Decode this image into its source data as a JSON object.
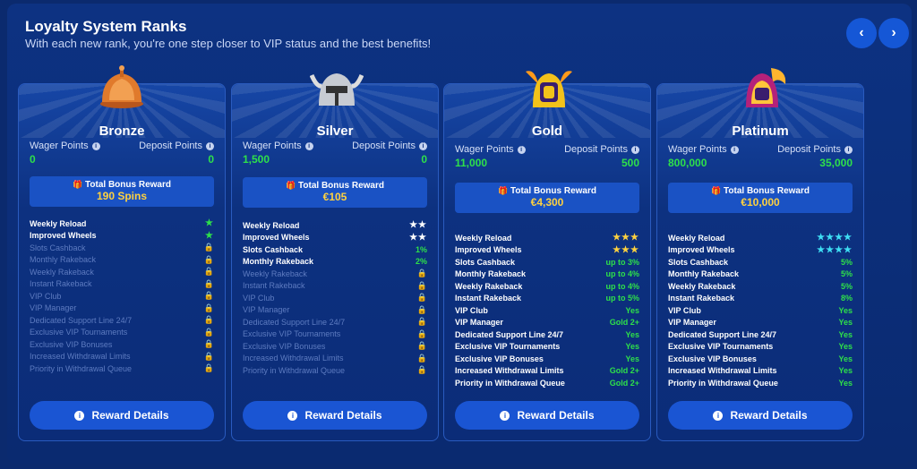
{
  "header": {
    "title": "Loyalty System Ranks",
    "subtitle": "With each new rank, you're one step closer to VIP status and the best benefits!",
    "prev_icon": "chevron-left-icon",
    "next_icon": "chevron-right-icon"
  },
  "labels": {
    "wager": "Wager Points",
    "deposit": "Deposit Points",
    "bonus": "Total Bonus Reward",
    "reward_details": "Reward Details"
  },
  "colors": {
    "accent": "#1a55d3",
    "green": "#2ee04a",
    "gold": "#ffd23f",
    "locked": "#5d7bc0"
  },
  "ranks": [
    {
      "name": "Bronze",
      "wager": "0",
      "deposit": "0",
      "bonus": "190 Spins",
      "features": [
        {
          "label": "Weekly Reload",
          "value": "★",
          "kind": "star-green",
          "locked": false
        },
        {
          "label": "Improved Wheels",
          "value": "★",
          "kind": "star-green",
          "locked": false
        },
        {
          "label": "Slots Cashback",
          "value": "",
          "kind": "lock",
          "locked": true
        },
        {
          "label": "Monthly Rakeback",
          "value": "",
          "kind": "lock",
          "locked": true
        },
        {
          "label": "Weekly Rakeback",
          "value": "",
          "kind": "lock",
          "locked": true
        },
        {
          "label": "Instant Rakeback",
          "value": "",
          "kind": "lock",
          "locked": true
        },
        {
          "label": "VIP Club",
          "value": "",
          "kind": "lock",
          "locked": true
        },
        {
          "label": "VIP Manager",
          "value": "",
          "kind": "lock",
          "locked": true
        },
        {
          "label": "Dedicated Support Line 24/7",
          "value": "",
          "kind": "lock",
          "locked": true
        },
        {
          "label": "Exclusive VIP Tournaments",
          "value": "",
          "kind": "lock",
          "locked": true
        },
        {
          "label": "Exclusive VIP Bonuses",
          "value": "",
          "kind": "lock",
          "locked": true
        },
        {
          "label": "Increased Withdrawal Limits",
          "value": "",
          "kind": "lock",
          "locked": true
        },
        {
          "label": "Priority in Withdrawal Queue",
          "value": "",
          "kind": "lock",
          "locked": true
        }
      ]
    },
    {
      "name": "Silver",
      "wager": "1,500",
      "deposit": "0",
      "bonus": "€105",
      "features": [
        {
          "label": "Weekly Reload",
          "value": "★★",
          "kind": "star-white",
          "locked": false
        },
        {
          "label": "Improved Wheels",
          "value": "★★",
          "kind": "star-white",
          "locked": false
        },
        {
          "label": "Slots Cashback",
          "value": "1%",
          "kind": "val-green",
          "locked": false
        },
        {
          "label": "Monthly Rakeback",
          "value": "2%",
          "kind": "val-green",
          "locked": false
        },
        {
          "label": "Weekly Rakeback",
          "value": "",
          "kind": "lock",
          "locked": true
        },
        {
          "label": "Instant Rakeback",
          "value": "",
          "kind": "lock",
          "locked": true
        },
        {
          "label": "VIP Club",
          "value": "",
          "kind": "lock",
          "locked": true
        },
        {
          "label": "VIP Manager",
          "value": "",
          "kind": "lock",
          "locked": true
        },
        {
          "label": "Dedicated Support Line 24/7",
          "value": "",
          "kind": "lock",
          "locked": true
        },
        {
          "label": "Exclusive VIP Tournaments",
          "value": "",
          "kind": "lock",
          "locked": true
        },
        {
          "label": "Exclusive VIP Bonuses",
          "value": "",
          "kind": "lock",
          "locked": true
        },
        {
          "label": "Increased Withdrawal Limits",
          "value": "",
          "kind": "lock",
          "locked": true
        },
        {
          "label": "Priority in Withdrawal Queue",
          "value": "",
          "kind": "lock",
          "locked": true
        }
      ]
    },
    {
      "name": "Gold",
      "wager": "11,000",
      "deposit": "500",
      "bonus": "€4,300",
      "features": [
        {
          "label": "Weekly Reload",
          "value": "★★★",
          "kind": "star-gold",
          "locked": false
        },
        {
          "label": "Improved Wheels",
          "value": "★★★",
          "kind": "star-gold",
          "locked": false
        },
        {
          "label": "Slots Cashback",
          "value": "up to 3%",
          "kind": "val-green",
          "locked": false
        },
        {
          "label": "Monthly Rakeback",
          "value": "up to 4%",
          "kind": "val-green",
          "locked": false
        },
        {
          "label": "Weekly Rakeback",
          "value": "up to 4%",
          "kind": "val-green",
          "locked": false
        },
        {
          "label": "Instant Rakeback",
          "value": "up to 5%",
          "kind": "val-green",
          "locked": false
        },
        {
          "label": "VIP Club",
          "value": "Yes",
          "kind": "val-green",
          "locked": false
        },
        {
          "label": "VIP Manager",
          "value": "Gold 2+",
          "kind": "val-green",
          "locked": false
        },
        {
          "label": "Dedicated Support Line 24/7",
          "value": "Yes",
          "kind": "val-green",
          "locked": false
        },
        {
          "label": "Exclusive VIP Tournaments",
          "value": "Yes",
          "kind": "val-green",
          "locked": false
        },
        {
          "label": "Exclusive VIP Bonuses",
          "value": "Yes",
          "kind": "val-green",
          "locked": false
        },
        {
          "label": "Increased Withdrawal Limits",
          "value": "Gold 2+",
          "kind": "val-green",
          "locked": false
        },
        {
          "label": "Priority in Withdrawal Queue",
          "value": "Gold 2+",
          "kind": "val-green",
          "locked": false
        }
      ]
    },
    {
      "name": "Platinum",
      "wager": "800,000",
      "deposit": "35,000",
      "bonus": "€10,000",
      "features": [
        {
          "label": "Weekly Reload",
          "value": "★★★★",
          "kind": "star-cyan",
          "locked": false
        },
        {
          "label": "Improved Wheels",
          "value": "★★★★",
          "kind": "star-cyan",
          "locked": false
        },
        {
          "label": "Slots Cashback",
          "value": "5%",
          "kind": "val-green",
          "locked": false
        },
        {
          "label": "Monthly Rakeback",
          "value": "5%",
          "kind": "val-green",
          "locked": false
        },
        {
          "label": "Weekly Rakeback",
          "value": "5%",
          "kind": "val-green",
          "locked": false
        },
        {
          "label": "Instant Rakeback",
          "value": "8%",
          "kind": "val-green",
          "locked": false
        },
        {
          "label": "VIP Club",
          "value": "Yes",
          "kind": "val-green",
          "locked": false
        },
        {
          "label": "VIP Manager",
          "value": "Yes",
          "kind": "val-green",
          "locked": false
        },
        {
          "label": "Dedicated Support Line 24/7",
          "value": "Yes",
          "kind": "val-green",
          "locked": false
        },
        {
          "label": "Exclusive VIP Tournaments",
          "value": "Yes",
          "kind": "val-green",
          "locked": false
        },
        {
          "label": "Exclusive VIP Bonuses",
          "value": "Yes",
          "kind": "val-green",
          "locked": false
        },
        {
          "label": "Increased Withdrawal Limits",
          "value": "Yes",
          "kind": "val-green",
          "locked": false
        },
        {
          "label": "Priority in Withdrawal Queue",
          "value": "Yes",
          "kind": "val-green",
          "locked": false
        }
      ]
    }
  ]
}
